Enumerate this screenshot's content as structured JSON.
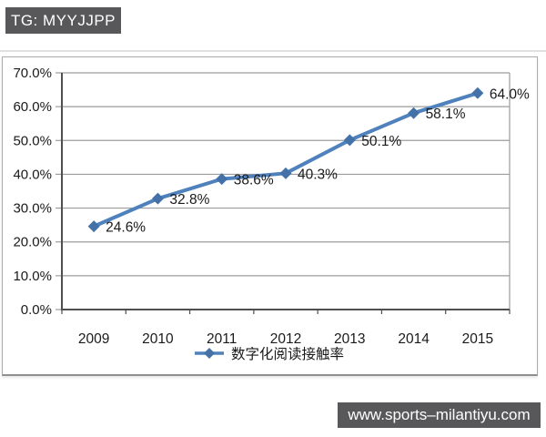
{
  "colors": {
    "page_bg": "#FFFFFF",
    "banner_bg": "#58585B",
    "banner_fg": "#FFFFFF",
    "line": "#4F81BD",
    "marker": "#4472A8",
    "grid": "#9C9C9C",
    "axis": "#4F4F4F",
    "text": "#1A1A1A",
    "card_border": "#ABABAB",
    "card_bottom_border": "#8F8F8F",
    "divider": "#E0E0E0"
  },
  "top_banner": {
    "text": "TG: MYYJJPP"
  },
  "bottom_banner": {
    "text": "www.sports–milantiyu.com"
  },
  "chart_data": {
    "type": "line",
    "title": "",
    "categories": [
      "2009",
      "2010",
      "2011",
      "2012",
      "2013",
      "2014",
      "2015"
    ],
    "series": [
      {
        "name": "数字化阅读接触率",
        "values": [
          24.6,
          32.8,
          38.6,
          40.3,
          50.1,
          58.1,
          64.0
        ],
        "point_labels": [
          "24.6%",
          "32.8%",
          "38.6%",
          "40.3%",
          "50.1%",
          "58.1%",
          "64.0%"
        ]
      }
    ],
    "ylim": [
      0,
      70
    ],
    "y_ticks": [
      {
        "value": 0,
        "label": "0.0%"
      },
      {
        "value": 10,
        "label": "10.0%"
      },
      {
        "value": 20,
        "label": "20.0%"
      },
      {
        "value": 30,
        "label": "30.0%"
      },
      {
        "value": 40,
        "label": "40.0%"
      },
      {
        "value": 50,
        "label": "50.0%"
      },
      {
        "value": 60,
        "label": "60.0%"
      },
      {
        "value": 70,
        "label": "70.0%"
      }
    ],
    "grid": "horizontal",
    "legend_position": "bottom",
    "marker": "diamond"
  }
}
